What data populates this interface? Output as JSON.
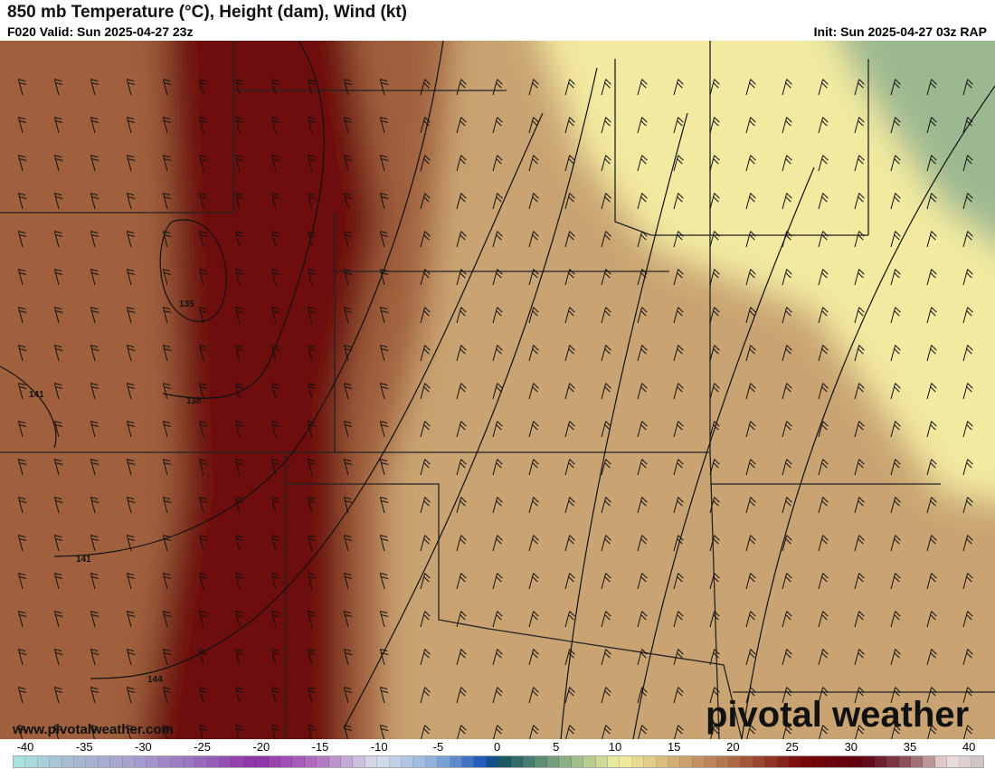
{
  "header": {
    "title": "850 mb Temperature (°C), Height (dam), Wind (kt)",
    "valid": "F020 Valid: Sun 2025-04-27 23z",
    "init": "Init: Sun 2025-04-27 03z RAP"
  },
  "map": {
    "contour_labels": [
      "135",
      "138",
      "141",
      "141",
      "144"
    ],
    "colors": {
      "hot": "#6e1010",
      "warm": "#a0603c",
      "mild": "#c9a472",
      "cool": "#f2eaa0",
      "cold": "#9cb890"
    }
  },
  "watermark": {
    "site": "www.pivotalweather.com",
    "logo": "pivotal weather"
  },
  "colorbar": {
    "ticks": [
      "-40",
      "-35",
      "-30",
      "-25",
      "-20",
      "-15",
      "-10",
      "-5",
      "0",
      "5",
      "10",
      "15",
      "20",
      "25",
      "30",
      "35",
      "40"
    ],
    "stops": [
      [
        -40,
        "#a8e8e0"
      ],
      [
        -35,
        "#a8b8d0"
      ],
      [
        -30,
        "#a8a0d0"
      ],
      [
        -25,
        "#9870c0"
      ],
      [
        -20,
        "#9030a8"
      ],
      [
        -15,
        "#b070c0"
      ],
      [
        -10,
        "#d8e0ec"
      ],
      [
        -5,
        "#88acd8"
      ],
      [
        -1,
        "#1850b8"
      ],
      [
        0,
        "#105060"
      ],
      [
        5,
        "#80a880"
      ],
      [
        10,
        "#f2f0a0"
      ],
      [
        15,
        "#d0a870"
      ],
      [
        20,
        "#a86040"
      ],
      [
        25,
        "#780808"
      ],
      [
        30,
        "#600010"
      ],
      [
        33,
        "#804050"
      ],
      [
        35,
        "#a88080"
      ],
      [
        37,
        "#f0e0e0"
      ],
      [
        40,
        "#c8c0c0"
      ]
    ]
  }
}
